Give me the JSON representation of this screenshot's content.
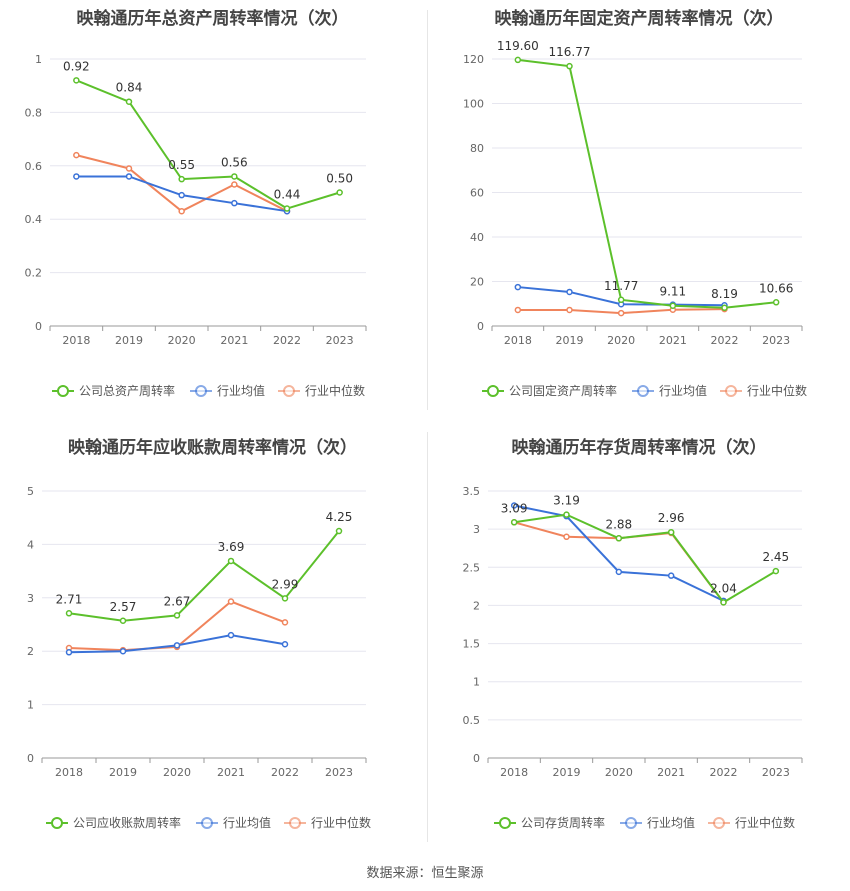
{
  "source": "数据来源：恒生聚源",
  "colors": {
    "company": "#5cc02b",
    "mean": "#3a72d8",
    "median": "#f0845c"
  },
  "chart_data": [
    {
      "type": "line",
      "title": "映翰通历年总资产周转率情况（次）",
      "categories": [
        "2018",
        "2019",
        "2020",
        "2021",
        "2022",
        "2023"
      ],
      "ylim": [
        0,
        1
      ],
      "yticks": [
        "0",
        "0.2",
        "0.4",
        "0.6",
        "0.8",
        "1"
      ],
      "ytick_values": [
        0,
        0.2,
        0.4,
        0.6,
        0.8,
        1
      ],
      "legend": [
        "公司总资产周转率",
        "行业均值",
        "行业中位数"
      ],
      "series": [
        {
          "name": "公司总资产周转率",
          "values": [
            0.92,
            0.84,
            0.55,
            0.56,
            0.44,
            0.5
          ],
          "labels": [
            "0.92",
            "0.84",
            "0.55",
            "0.56",
            "0.44",
            "0.50"
          ]
        },
        {
          "name": "行业均值",
          "values": [
            0.56,
            0.56,
            0.49,
            0.46,
            0.43,
            null
          ]
        },
        {
          "name": "行业中位数",
          "values": [
            0.64,
            0.59,
            0.43,
            0.53,
            0.43,
            null
          ]
        }
      ]
    },
    {
      "type": "line",
      "title": "映翰通历年固定资产周转率情况（次）",
      "categories": [
        "2018",
        "2019",
        "2020",
        "2021",
        "2022",
        "2023"
      ],
      "ylim": [
        0,
        120
      ],
      "yticks": [
        "0",
        "20",
        "40",
        "60",
        "80",
        "100",
        "120"
      ],
      "ytick_values": [
        0,
        20,
        40,
        60,
        80,
        100,
        120
      ],
      "legend": [
        "公司固定资产周转率",
        "行业均值",
        "行业中位数"
      ],
      "series": [
        {
          "name": "公司固定资产周转率",
          "values": [
            119.6,
            116.77,
            11.77,
            9.11,
            8.19,
            10.66
          ],
          "labels": [
            "119.60",
            "116.77",
            "11.77",
            "9.11",
            "8.19",
            "10.66"
          ]
        },
        {
          "name": "行业均值",
          "values": [
            17.5,
            15.3,
            9.8,
            9.6,
            9.3,
            null
          ]
        },
        {
          "name": "行业中位数",
          "values": [
            7.2,
            7.2,
            5.8,
            7.3,
            7.6,
            null
          ]
        }
      ]
    },
    {
      "type": "line",
      "title": "映翰通历年应收账款周转率情况（次）",
      "categories": [
        "2018",
        "2019",
        "2020",
        "2021",
        "2022",
        "2023"
      ],
      "ylim": [
        0,
        5
      ],
      "yticks": [
        "0",
        "1",
        "2",
        "3",
        "4",
        "5"
      ],
      "ytick_values": [
        0,
        1,
        2,
        3,
        4,
        5
      ],
      "legend": [
        "公司应收账款周转率",
        "行业均值",
        "行业中位数"
      ],
      "series": [
        {
          "name": "公司应收账款周转率",
          "values": [
            2.71,
            2.57,
            2.67,
            3.69,
            2.99,
            4.25
          ],
          "labels": [
            "2.71",
            "2.57",
            "2.67",
            "3.69",
            "2.99",
            "4.25"
          ]
        },
        {
          "name": "行业均值",
          "values": [
            1.98,
            2.0,
            2.11,
            2.3,
            2.13,
            null
          ]
        },
        {
          "name": "行业中位数",
          "values": [
            2.06,
            2.02,
            2.08,
            2.93,
            2.54,
            null
          ]
        }
      ]
    },
    {
      "type": "line",
      "title": "映翰通历年存货周转率情况（次）",
      "categories": [
        "2018",
        "2019",
        "2020",
        "2021",
        "2022",
        "2023"
      ],
      "ylim": [
        0,
        3.5
      ],
      "yticks": [
        "0",
        "0.5",
        "1",
        "1.5",
        "2",
        "2.5",
        "3",
        "3.5"
      ],
      "ytick_values": [
        0,
        0.5,
        1,
        1.5,
        2,
        2.5,
        3,
        3.5
      ],
      "legend": [
        "公司存货周转率",
        "行业均值",
        "行业中位数"
      ],
      "series": [
        {
          "name": "公司存货周转率",
          "values": [
            3.09,
            3.19,
            2.88,
            2.96,
            2.04,
            2.45
          ],
          "labels": [
            "3.09",
            "3.19",
            "2.88",
            "2.96",
            "2.04",
            "2.45"
          ]
        },
        {
          "name": "行业均值",
          "values": [
            3.31,
            3.17,
            2.44,
            2.39,
            2.06,
            null
          ]
        },
        {
          "name": "行业中位数",
          "values": [
            3.09,
            2.9,
            2.88,
            2.95,
            2.04,
            null
          ]
        }
      ]
    }
  ]
}
